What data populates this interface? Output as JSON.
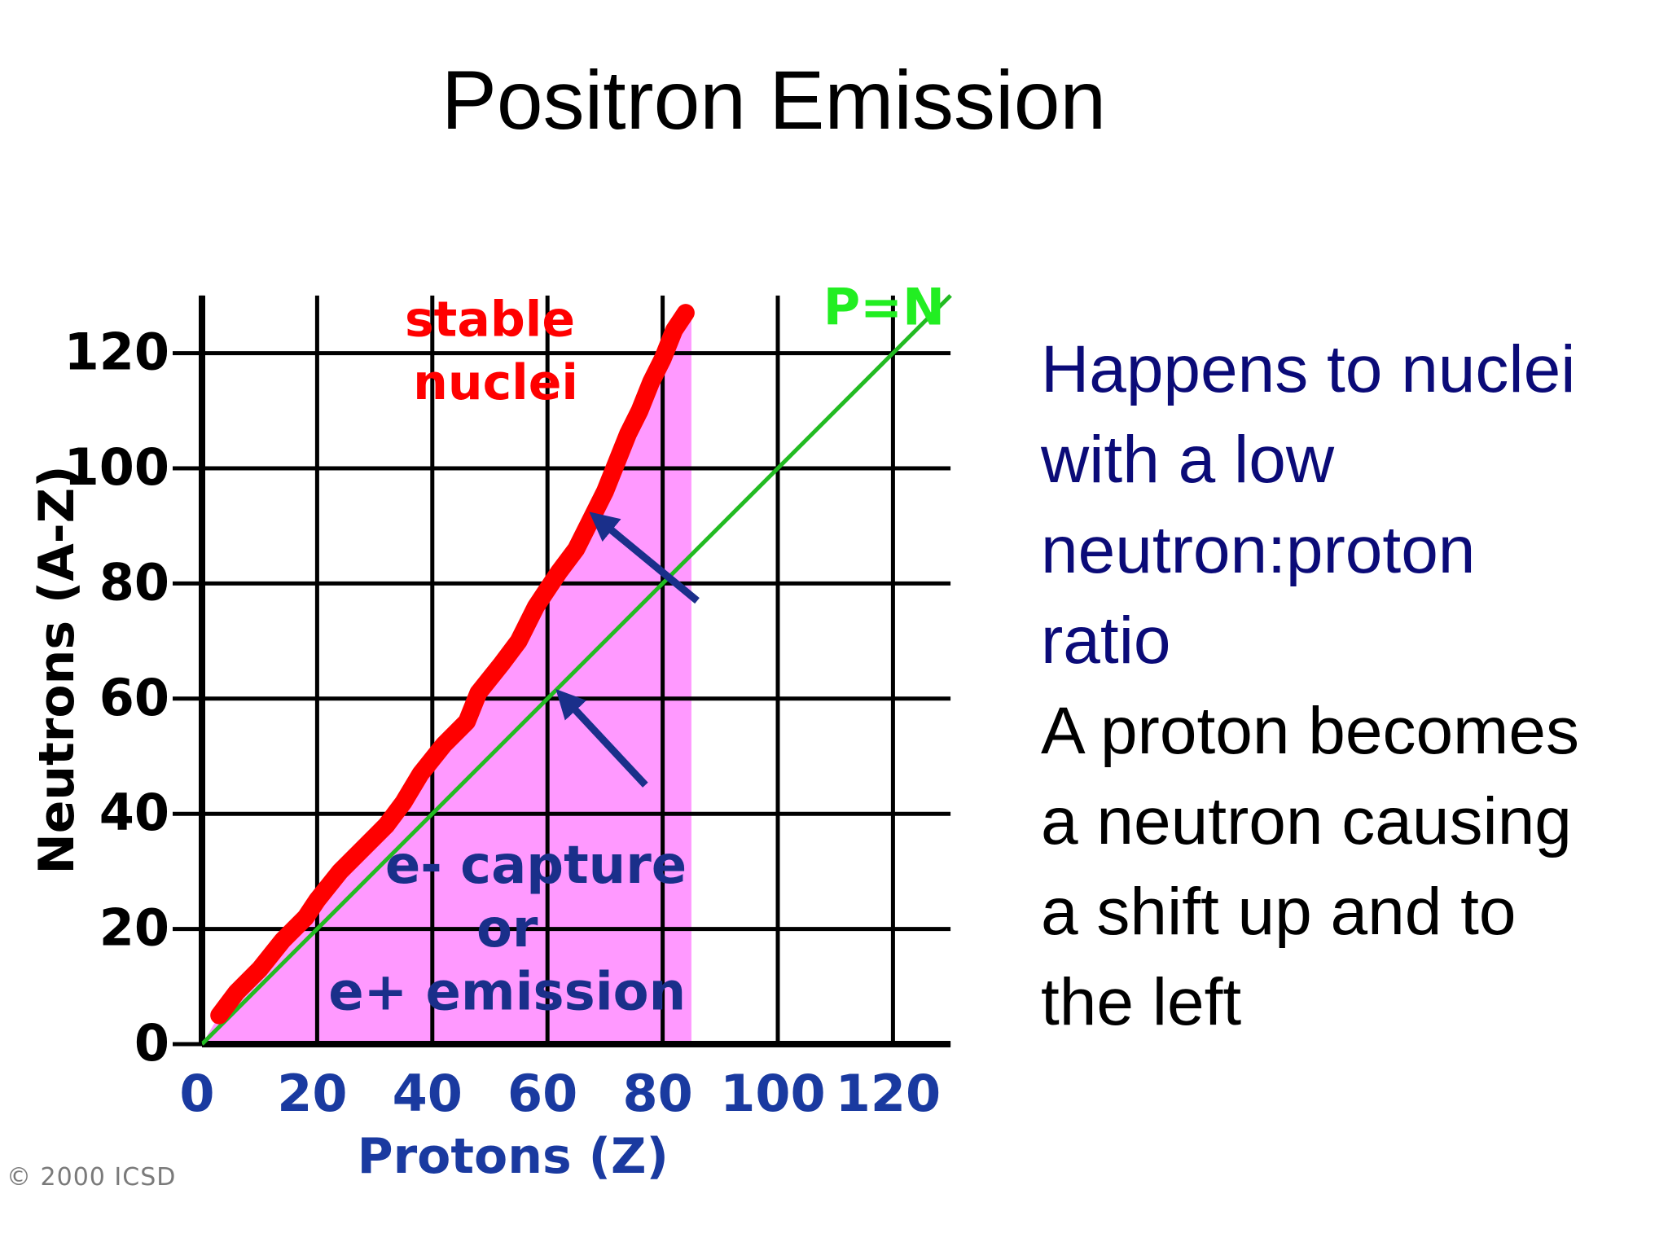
{
  "slide": {
    "title": "Positron Emission",
    "copyright": "© 2000 ICSD",
    "side_text": {
      "blue_lines": [
        "Happens to nuclei",
        "with a low",
        "neutron:proton",
        "ratio"
      ],
      "black_lines": [
        "A proton becomes",
        "a neutron causing",
        "a shift up and to",
        "the left"
      ]
    }
  },
  "chart_data": {
    "type": "scatter",
    "title": "",
    "xlabel": "Protons  (Z)",
    "ylabel": "Neutrons  (A-Z)",
    "xlim": [
      0,
      130
    ],
    "ylim": [
      0,
      130
    ],
    "x_ticks": [
      "0",
      "20",
      "40",
      "60",
      "80",
      "100",
      "120"
    ],
    "y_ticks": [
      "0",
      "20",
      "40",
      "60",
      "80",
      "100",
      "120"
    ],
    "grid": true,
    "series": [
      {
        "name": "stable nuclei",
        "color": "#ff0000",
        "points": [
          [
            3,
            5
          ],
          [
            6,
            9
          ],
          [
            10,
            13
          ],
          [
            14,
            18
          ],
          [
            18,
            22
          ],
          [
            20,
            25
          ],
          [
            24,
            30
          ],
          [
            28,
            34
          ],
          [
            32,
            38
          ],
          [
            35,
            42
          ],
          [
            38,
            47
          ],
          [
            42,
            52
          ],
          [
            46,
            56
          ],
          [
            48,
            61
          ],
          [
            52,
            66
          ],
          [
            55,
            70
          ],
          [
            58,
            76
          ],
          [
            62,
            82
          ],
          [
            65,
            86
          ],
          [
            68,
            92
          ],
          [
            70,
            96
          ],
          [
            72,
            101
          ],
          [
            74,
            106
          ],
          [
            76,
            110
          ],
          [
            78,
            115
          ],
          [
            80,
            119
          ],
          [
            82,
            124
          ],
          [
            84,
            127
          ]
        ]
      },
      {
        "name": "P=N",
        "color": "#22bb22",
        "points": [
          [
            0,
            0
          ],
          [
            130,
            130
          ]
        ]
      }
    ],
    "shaded_region": {
      "label": [
        "e- capture",
        "or",
        "e+ emission"
      ],
      "color": "#ff99ff",
      "x_max": 85
    },
    "annotations": {
      "stable_label": [
        "stable",
        "nuclei"
      ],
      "pn_label": "P=N",
      "arrows": [
        {
          "from": [
            86,
            77
          ],
          "to": [
            69,
            91
          ]
        },
        {
          "from": [
            77,
            45
          ],
          "to": [
            63,
            60
          ]
        }
      ]
    }
  }
}
